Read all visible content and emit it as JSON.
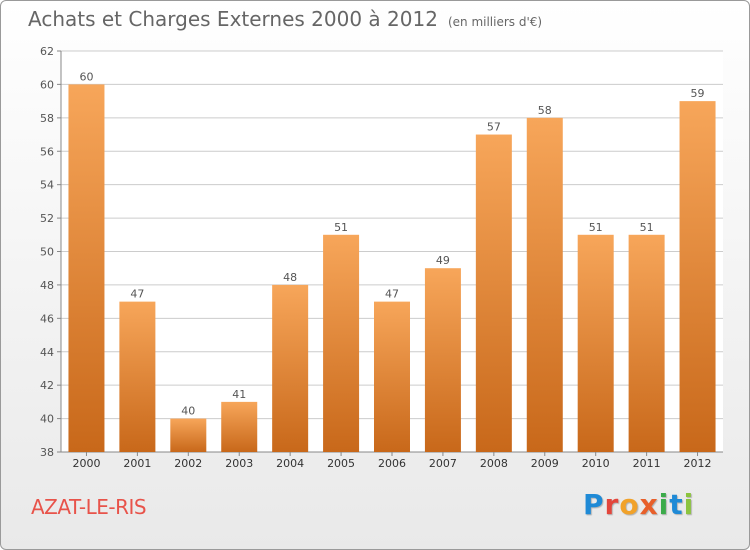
{
  "header": {
    "title": "Achats et Charges Externes 2000 à 2012",
    "unit": "(en milliers d'€)"
  },
  "commune": "AZAT-LE-RIS",
  "brand": {
    "letters": [
      "P",
      "r",
      "o",
      "x",
      "i",
      "t",
      "i"
    ]
  },
  "colors": {
    "bar_light": "#f7a65a",
    "bar_dark": "#c8681a",
    "grid": "#cccccc",
    "axis_text": "#555555",
    "commune": "#e8534a"
  },
  "chart_data": {
    "type": "bar",
    "title": "Achats et Charges Externes 2000 à 2012",
    "categories": [
      "2000",
      "2001",
      "2002",
      "2003",
      "2004",
      "2005",
      "2006",
      "2007",
      "2008",
      "2009",
      "2010",
      "2011",
      "2012"
    ],
    "values": [
      60,
      47,
      40,
      41,
      48,
      51,
      47,
      49,
      57,
      58,
      51,
      51,
      59
    ],
    "ylim": [
      38,
      62
    ],
    "yticks": [
      38,
      40,
      42,
      44,
      46,
      48,
      50,
      52,
      54,
      56,
      58,
      60,
      62
    ],
    "grid": true,
    "xlabel": "",
    "ylabel": ""
  }
}
